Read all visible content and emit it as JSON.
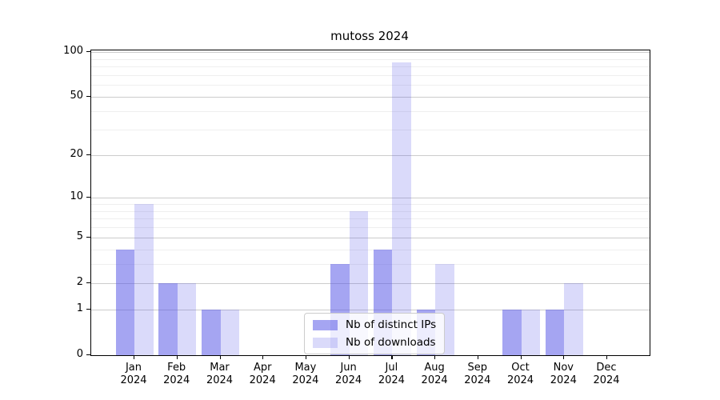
{
  "chart_data": {
    "type": "bar",
    "title": "mutoss 2024",
    "categories": [
      "Jan",
      "Feb",
      "Mar",
      "Apr",
      "May",
      "Jun",
      "Jul",
      "Aug",
      "Sep",
      "Oct",
      "Nov",
      "Dec"
    ],
    "year": "2024",
    "series": [
      {
        "name": "Nb of distinct IPs",
        "color": "rgba(82,82,230,0.52)",
        "values": [
          4,
          2,
          1,
          0,
          0,
          3,
          4,
          1,
          0,
          1,
          1,
          0
        ]
      },
      {
        "name": "Nb of downloads",
        "color": "rgba(82,82,230,0.21)",
        "values": [
          9,
          2,
          1,
          0,
          0,
          8,
          85,
          3,
          0,
          1,
          2,
          0
        ]
      }
    ],
    "y_axis": {
      "scale": "log1p",
      "ticks": [
        0,
        1,
        2,
        5,
        10,
        20,
        50,
        100
      ],
      "minor_gridlines": [
        3,
        4,
        6,
        7,
        8,
        9,
        30,
        40,
        60,
        70,
        80,
        90
      ],
      "range_top": 103
    },
    "xlabel": "",
    "ylabel": "",
    "legend": {
      "entries": [
        "Nb of distinct IPs",
        "Nb of downloads"
      ],
      "position": "bottom-center"
    },
    "grid": true
  },
  "colors": {
    "bar_distinct_ips_rendered": "#a5a5f2",
    "bar_downloads_rendered": "#dbdbfa",
    "grid_major": "#cccccc",
    "grid_minor": "#efefef",
    "axis": "#000000",
    "background": "#ffffff"
  }
}
